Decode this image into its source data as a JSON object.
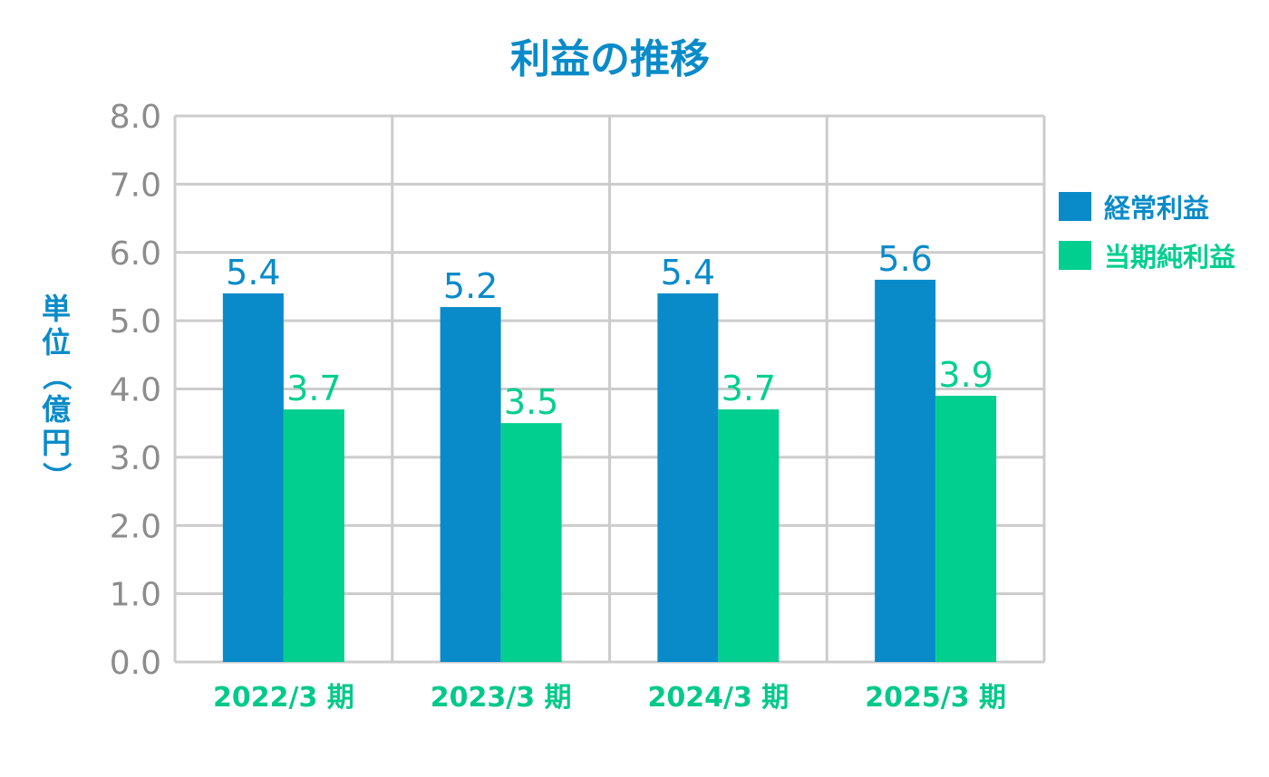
{
  "chart_data": {
    "type": "bar",
    "title": "利益の推移",
    "ylabel": "単位（億円）",
    "xlabel": "",
    "categories": [
      "2022/3 期",
      "2023/3 期",
      "2024/3 期",
      "2025/3 期"
    ],
    "series": [
      {
        "name": "経常利益",
        "values": [
          5.4,
          5.2,
          5.4,
          5.6
        ],
        "color": "#0a8bc9",
        "labels": [
          "5.4",
          "5.2",
          "5.4",
          "5.6"
        ]
      },
      {
        "name": "当期純利益",
        "values": [
          3.7,
          3.5,
          3.7,
          3.9
        ],
        "color": "#00cf8f",
        "labels": [
          "3.7",
          "3.5",
          "3.7",
          "3.9"
        ]
      }
    ],
    "ylim": [
      0,
      8
    ],
    "yticks": [
      "0.0",
      "1.0",
      "2.0",
      "3.0",
      "4.0",
      "5.0",
      "6.0",
      "7.0",
      "8.0"
    ],
    "grid": true,
    "legend": "right"
  },
  "colors": {
    "title": "#0a8bc9",
    "axis_label": "#0a8bc9",
    "tick": "#8c8c8c",
    "category": "#00c98a",
    "grid": "#cccccc"
  }
}
